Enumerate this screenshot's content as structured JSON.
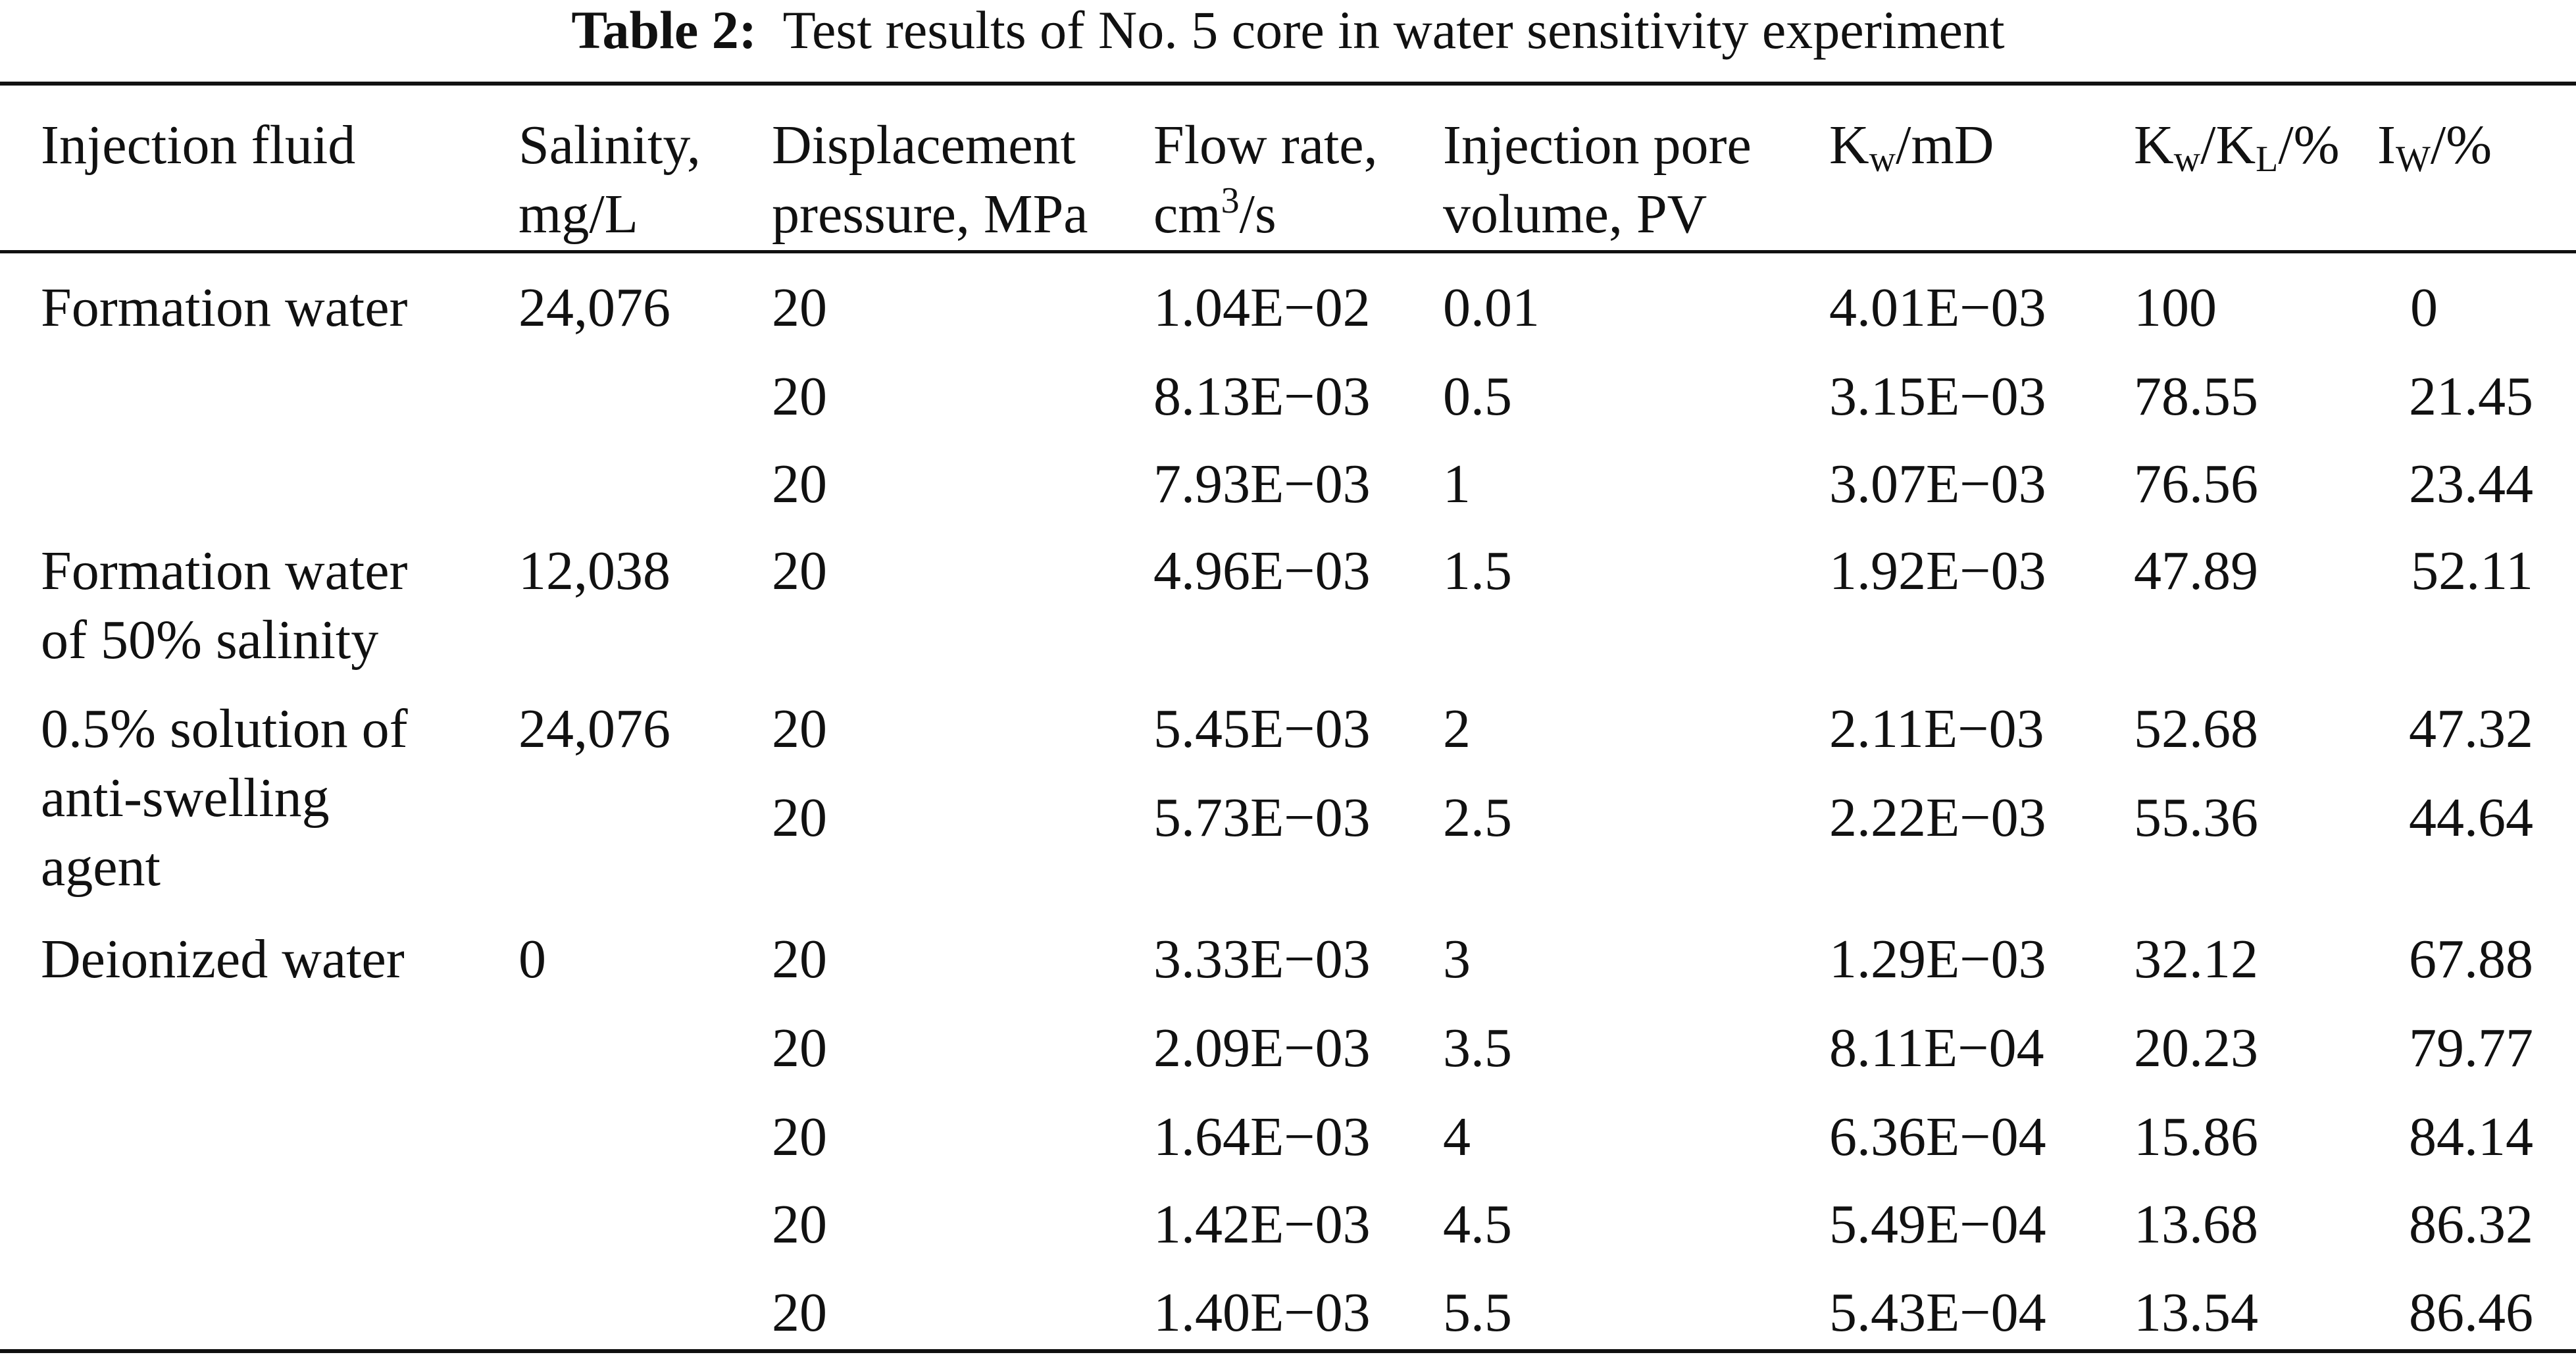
{
  "caption": {
    "label": "Table 2:",
    "text": "Test results of No. 5 core in water sensitivity experiment"
  },
  "headers": {
    "fluid": "Injection fluid",
    "salinity": [
      "Salinity,",
      "mg/L"
    ],
    "pressure": [
      "Displacement",
      "pressure, MPa"
    ],
    "flow": {
      "line1": "Flow rate,",
      "unit_base": "cm",
      "unit_exp": "3",
      "unit_tail": "/s"
    },
    "pv": [
      "Injection pore",
      "volume, PV"
    ],
    "kw": {
      "base": "K",
      "sub": "w",
      "tail": "/mD"
    },
    "ratio": {
      "base1": "K",
      "sub1": "w",
      "mid": "/K",
      "sub2": "L",
      "tail": "/%"
    },
    "iw": {
      "base": "I",
      "sub": "W",
      "tail": "/%"
    }
  },
  "groups": [
    {
      "fluid": [
        "Formation water"
      ],
      "salinity": "24,076"
    },
    {
      "fluid": [
        "Formation water",
        "of 50% salinity"
      ],
      "salinity": "12,038"
    },
    {
      "fluid": [
        "0.5% solution of",
        "anti-swelling",
        "agent"
      ],
      "salinity": "24,076"
    },
    {
      "fluid": [
        "Deionized water"
      ],
      "salinity": "0"
    }
  ],
  "rows": [
    {
      "pressure": "20",
      "flow": "1.04E−02",
      "pv": "0.01",
      "kw": "4.01E−03",
      "ratio": "100",
      "iw": "0"
    },
    {
      "pressure": "20",
      "flow": "8.13E−03",
      "pv": "0.5",
      "kw": "3.15E−03",
      "ratio": "78.55",
      "iw": "21.45"
    },
    {
      "pressure": "20",
      "flow": "7.93E−03",
      "pv": "1",
      "kw": "3.07E−03",
      "ratio": "76.56",
      "iw": "23.44"
    },
    {
      "pressure": "20",
      "flow": "4.96E−03",
      "pv": "1.5",
      "kw": "1.92E−03",
      "ratio": "47.89",
      "iw": "52.11"
    },
    {
      "pressure": "20",
      "flow": "5.45E−03",
      "pv": "2",
      "kw": "2.11E−03",
      "ratio": "52.68",
      "iw": "47.32"
    },
    {
      "pressure": "20",
      "flow": "5.73E−03",
      "pv": "2.5",
      "kw": "2.22E−03",
      "ratio": "55.36",
      "iw": "44.64"
    },
    {
      "pressure": "20",
      "flow": "3.33E−03",
      "pv": "3",
      "kw": "1.29E−03",
      "ratio": "32.12",
      "iw": "67.88"
    },
    {
      "pressure": "20",
      "flow": "2.09E−03",
      "pv": "3.5",
      "kw": "8.11E−04",
      "ratio": "20.23",
      "iw": "79.77"
    },
    {
      "pressure": "20",
      "flow": "1.64E−03",
      "pv": "4",
      "kw": "6.36E−04",
      "ratio": "15.86",
      "iw": "84.14"
    },
    {
      "pressure": "20",
      "flow": "1.42E−03",
      "pv": "4.5",
      "kw": "5.49E−04",
      "ratio": "13.68",
      "iw": "86.32"
    },
    {
      "pressure": "20",
      "flow": "1.40E−03",
      "pv": "5.5",
      "kw": "5.43E−04",
      "ratio": "13.54",
      "iw": "86.46"
    }
  ]
}
